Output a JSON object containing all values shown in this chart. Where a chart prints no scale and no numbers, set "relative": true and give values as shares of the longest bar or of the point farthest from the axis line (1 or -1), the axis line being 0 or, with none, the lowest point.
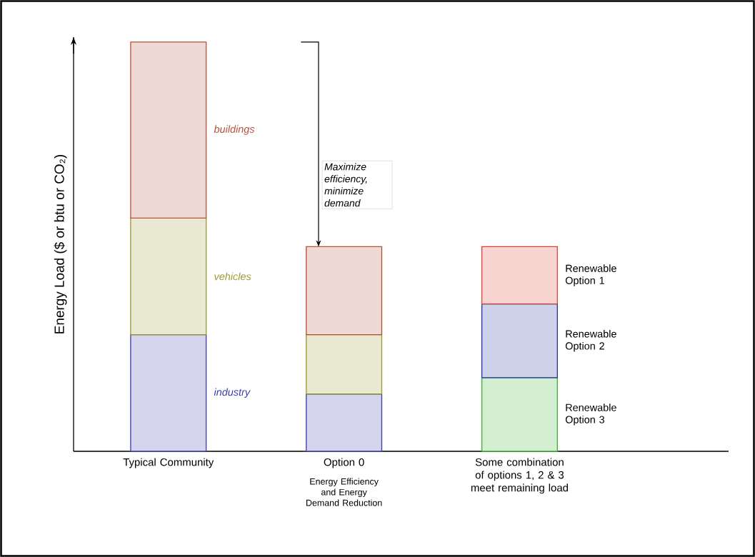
{
  "chart_data": {
    "type": "bar",
    "stacked": true,
    "relative": true,
    "ylabel": "Energy Load ($ or btu or CO₂)",
    "categories": [
      "Typical Community",
      "Option 0",
      "Some combination of options 1, 2 & 3 meet remaining load"
    ],
    "series": [
      {
        "name": "industry",
        "color": "#3c3ca8",
        "values": [
          0.285,
          0.14,
          null
        ]
      },
      {
        "name": "vehicles",
        "color": "#9a9a30",
        "values": [
          0.285,
          0.145,
          null
        ]
      },
      {
        "name": "buildings",
        "color": "#b5503a",
        "values": [
          0.43,
          0.215,
          null
        ]
      },
      {
        "name": "Renewable Option 3",
        "color": "#3cb030",
        "values": [
          null,
          null,
          0.18
        ]
      },
      {
        "name": "Renewable Option 2",
        "color": "#2030a0",
        "values": [
          null,
          null,
          0.18
        ]
      },
      {
        "name": "Renewable Option 1",
        "color": "#e04030",
        "values": [
          null,
          null,
          0.14
        ]
      }
    ],
    "annotations": [
      "Energy Efficiency and Energy Demand Reduction",
      "Maximize efficiency, minimize demand"
    ]
  }
}
